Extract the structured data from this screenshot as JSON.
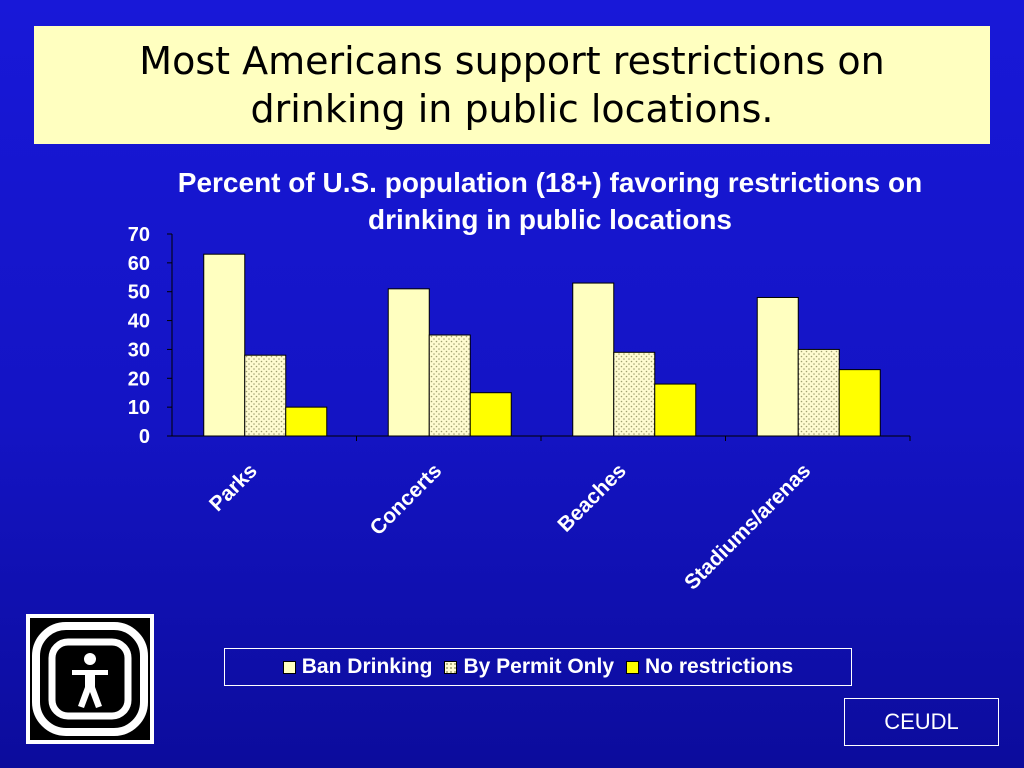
{
  "slide": {
    "title": "Most Americans support restrictions on drinking in public locations.",
    "source_label": "CEUDL"
  },
  "colors": {
    "background": "#1414c4",
    "title_box": "#ffffc0",
    "ban": "#ffffc0",
    "permit": "#fffac8",
    "none": "#ffff00"
  },
  "chart_data": {
    "type": "bar",
    "title": "Percent of U.S. population (18+) favoring restrictions on drinking in public locations",
    "categories": [
      "Parks",
      "Concerts",
      "Beaches",
      "Stadiums/arenas"
    ],
    "series": [
      {
        "name": "Ban Drinking",
        "values": [
          63,
          51,
          53,
          48
        ]
      },
      {
        "name": "By Permit Only",
        "values": [
          28,
          35,
          29,
          30
        ]
      },
      {
        "name": "No restrictions",
        "values": [
          10,
          15,
          18,
          23
        ]
      }
    ],
    "ylim": [
      0,
      70
    ],
    "yticks": [
      0,
      10,
      20,
      30,
      40,
      50,
      60,
      70
    ],
    "grid": false,
    "legend": "bottom"
  }
}
